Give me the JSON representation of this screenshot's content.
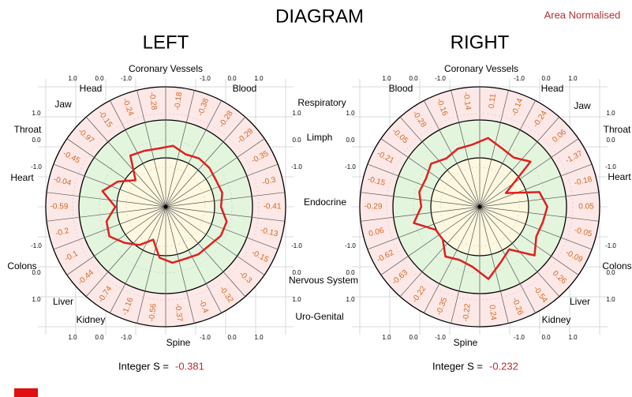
{
  "title": "DIAGRAM",
  "note": "Area Normalised",
  "score_label": "Integer S =",
  "chart_data": [
    {
      "type": "radar",
      "title": "LEFT",
      "score": -0.381,
      "rlim": [
        -1,
        1
      ],
      "rticks": [
        {
          "value": 1,
          "label": "1.0"
        },
        {
          "value": 0,
          "label": "0.0"
        },
        {
          "value": -1,
          "label": "-1.0"
        }
      ],
      "axis_labels": [
        "Coronary Vessels",
        "Blood",
        "Respiratory",
        "Limph",
        "Endocrine",
        "Nervous System",
        "Uro-Genital",
        "Spine",
        "Kidney",
        "Liver",
        "Colons",
        "Heart",
        "Throat",
        "Jaw",
        "Head"
      ],
      "color": "#e02020",
      "label_color": "#d2691e",
      "values": [
        -0.18,
        -0.38,
        -0.28,
        -0.29,
        -0.35,
        -0.3,
        -0.41,
        -0.13,
        -0.15,
        -0.3,
        -0.32,
        -0.4,
        -0.37,
        -0.56,
        -1.16,
        -0.74,
        -0.44,
        -0.1,
        -0.2,
        -0.59,
        -0.04,
        -0.45,
        -0.97,
        -0.15,
        -0.24,
        -0.28
      ]
    },
    {
      "type": "radar",
      "title": "RIGHT",
      "score": -0.232,
      "rlim": [
        -1,
        1
      ],
      "rticks": [
        {
          "value": 1,
          "label": "1.0"
        },
        {
          "value": 0,
          "label": "0.0"
        },
        {
          "value": -1,
          "label": "-1.0"
        }
      ],
      "axis_labels": [
        "Coronary Vessels",
        "Head",
        "Jaw",
        "Throat",
        "Heart",
        "Colons",
        "Liver",
        "Kidney",
        "Spine",
        "Blood"
      ],
      "color": "#e02020",
      "label_color": "#d2691e",
      "values": [
        0.11,
        -0.14,
        -0.24,
        0.06,
        -1.37,
        -0.18,
        0.05,
        -0.05,
        -0.09,
        0.26,
        -0.54,
        -0.26,
        0.24,
        -0.22,
        -0.35,
        -0.22,
        -0.63,
        -0.62,
        0.06,
        -0.29,
        -0.15,
        -0.21,
        -0.05,
        -0.28,
        -0.16,
        -0.14
      ]
    }
  ]
}
